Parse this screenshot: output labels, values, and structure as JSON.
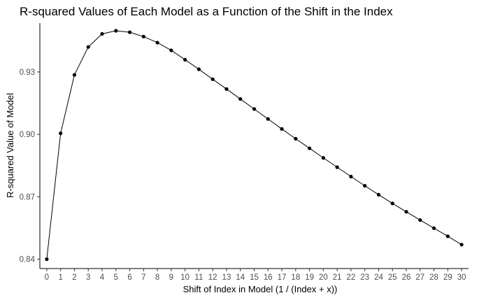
{
  "chart_data": {
    "type": "line",
    "title": "R-squared Values of Each Model as a Function of the Shift in the Index",
    "xlabel": "Shift of Index in Model (1 / (Index + x))",
    "ylabel": "R-squared Value of Model",
    "x": [
      0,
      1,
      2,
      3,
      4,
      5,
      6,
      7,
      8,
      9,
      10,
      11,
      12,
      13,
      14,
      15,
      16,
      17,
      18,
      19,
      20,
      21,
      22,
      23,
      24,
      25,
      26,
      27,
      28,
      29,
      30
    ],
    "x_tick_labels": [
      "0",
      "1",
      "2",
      "3",
      "4",
      "5",
      "6",
      "7",
      "8",
      "9",
      "10",
      "11",
      "12",
      "13",
      "14",
      "15",
      "16",
      "17",
      "18",
      "19",
      "20",
      "21",
      "22",
      "23",
      "24",
      "25",
      "26",
      "27",
      "28",
      "29",
      "30"
    ],
    "y_ticks": [
      0.84,
      0.87,
      0.9,
      0.93
    ],
    "y_tick_labels": [
      "0.84",
      "0.87",
      "0.90",
      "0.93"
    ],
    "series": [
      {
        "values": [
          0.84,
          0.9005,
          0.9286,
          0.942,
          0.9483,
          0.9498,
          0.9491,
          0.947,
          0.9441,
          0.9404,
          0.9359,
          0.9313,
          0.9265,
          0.9218,
          0.917,
          0.9122,
          0.9074,
          0.9026,
          0.8979,
          0.8933,
          0.8887,
          0.8842,
          0.8797,
          0.8753,
          0.871,
          0.8668,
          0.8628,
          0.8588,
          0.8549,
          0.851,
          0.847
        ],
        "color": "#000000"
      }
    ],
    "xlim": [
      -0.5,
      30.5
    ],
    "ylim": [
      0.8355,
      0.9535
    ],
    "grid": false,
    "legend": "none"
  }
}
